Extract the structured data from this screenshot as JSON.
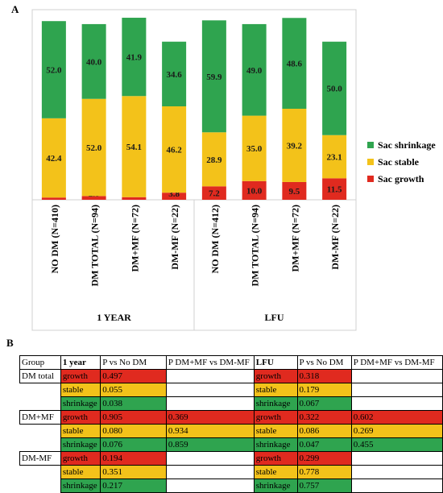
{
  "panel_labels": {
    "a": "A",
    "b": "B"
  },
  "chart_data": {
    "type": "bar",
    "stacked": true,
    "categories": [
      "NO DM (N=410)",
      "DM TOTAL (N=94)",
      "DM+MF (N=72)",
      "DM-MF (N=22)",
      "NO DM (N=412)",
      "DM TOTAL (N=94)",
      "DM+MF (N=72)",
      "DM-MF (N=22)"
    ],
    "groups": [
      {
        "label": "1 YEAR",
        "count": 4
      },
      {
        "label": "LFU",
        "count": 4
      }
    ],
    "series": [
      {
        "name": "Sac growth",
        "color": "#e02a1f",
        "values": [
          1.2,
          2.0,
          1.4,
          3.8,
          7.2,
          10.0,
          9.5,
          11.5
        ]
      },
      {
        "name": "Sac stable",
        "color": "#f3c21a",
        "values": [
          42.4,
          52.0,
          54.1,
          46.2,
          28.9,
          35.0,
          39.2,
          23.1
        ]
      },
      {
        "name": "Sac shrinkage",
        "color": "#2fa44f",
        "values": [
          52.0,
          40.0,
          41.9,
          34.6,
          59.9,
          49.0,
          48.6,
          50.0
        ]
      }
    ],
    "legend_order": [
      "Sac shrinkage",
      "Sac stable",
      "Sac growth"
    ],
    "legend_position": "right",
    "ylim": [
      0,
      100
    ],
    "grid": false
  },
  "table": {
    "headers": [
      "Group",
      "1 year",
      "P vs No DM",
      "P DM+MF vs DM-MF",
      "LFU",
      "P vs No DM",
      "P DM+MF vs DM-MF"
    ],
    "rows": [
      [
        "DM total",
        "growth",
        "0.497",
        "",
        "growth",
        "0.318",
        ""
      ],
      [
        "",
        "stable",
        "0.055",
        "",
        "stable",
        "0.179",
        ""
      ],
      [
        "",
        "shrinkage",
        "0.038",
        "",
        "shrinkage",
        "0.067",
        ""
      ],
      [
        "DM+MF",
        "growth",
        "0.905",
        "0.369",
        "growth",
        "0.322",
        "0.602"
      ],
      [
        "",
        "stable",
        "0.080",
        "0.934",
        "stable",
        "0.086",
        "0.269"
      ],
      [
        "",
        "shrinkage",
        "0.076",
        "0.859",
        "shrinkage",
        "0.047",
        "0.455"
      ],
      [
        "DM-MF",
        "growth",
        "0.194",
        "",
        "growth",
        "0.299",
        ""
      ],
      [
        "",
        "stable",
        "0.351",
        "",
        "stable",
        "0.778",
        ""
      ],
      [
        "",
        "shrinkage",
        "0.217",
        "",
        "shrinkage",
        "0.757",
        ""
      ]
    ]
  }
}
